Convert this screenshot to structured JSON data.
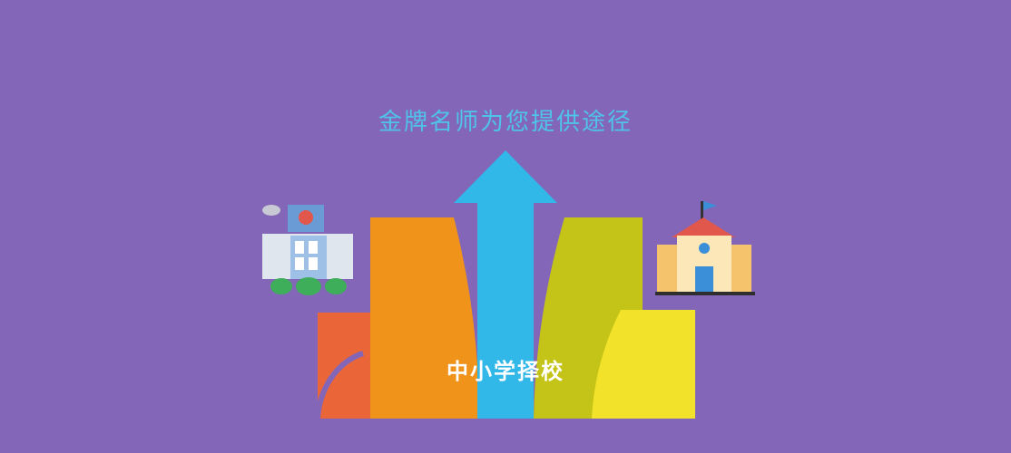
{
  "headline": "金牌名师为您提供途径",
  "caption": "中小学择校",
  "icons": {
    "left": "office-building-icon",
    "right": "school-building-icon"
  },
  "colors": {
    "background": "#8366b8",
    "headline": "#4fc3ea",
    "arrow_red": "#ea6638",
    "arrow_orange": "#f0931a",
    "arrow_blue": "#31b7e8",
    "arrow_lime": "#c4c318",
    "arrow_yellow": "#f3e22a"
  }
}
